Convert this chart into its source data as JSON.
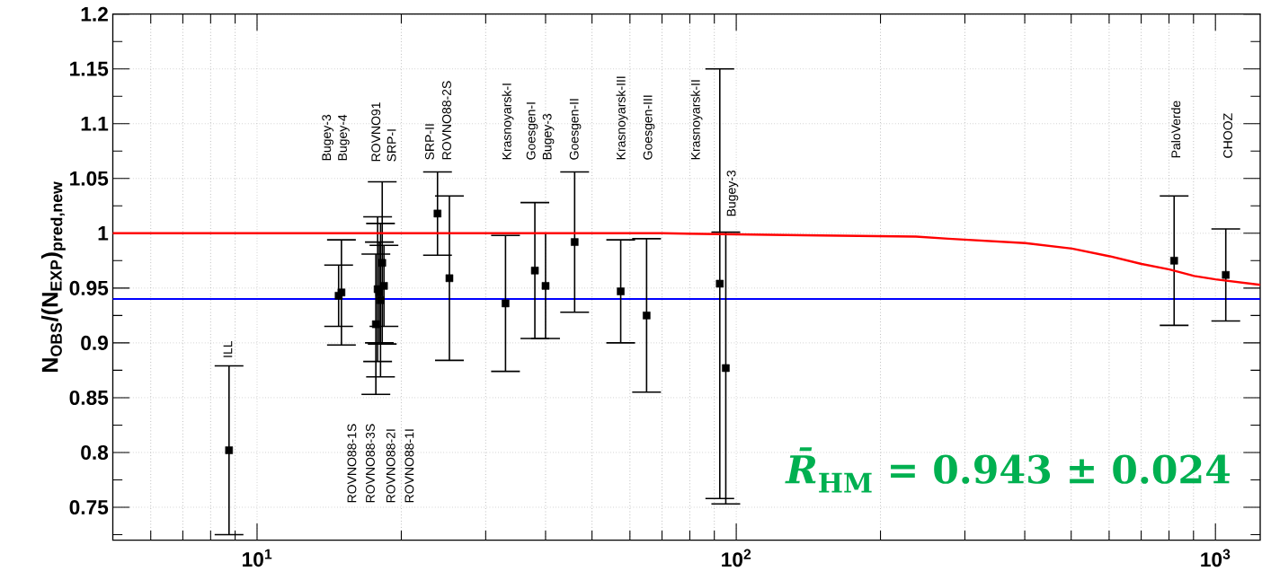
{
  "chart_data": {
    "type": "scatter",
    "ylabel": "N$_{OBS}$/(N$_{EXP}$)$_{pred,new}$",
    "log": "x",
    "grid": true,
    "xlim": [
      5,
      1240
    ],
    "ylim": [
      0.72,
      1.2
    ],
    "xticks": [
      {
        "value": 10,
        "label": "10$^{1}$"
      },
      {
        "value": 100,
        "label": "10$^{2}$"
      },
      {
        "value": 1000,
        "label": "10$^{3}$"
      }
    ],
    "yticks": [
      0.75,
      0.8,
      0.85,
      0.9,
      0.95,
      1,
      1.05,
      1.1,
      1.15,
      1.2
    ],
    "series": [
      {
        "color": "#000000",
        "marker": "square",
        "x": [
          8.74,
          14.8,
          15.0,
          17.7,
          17.85,
          18.0,
          18.1,
          18.25,
          18.4,
          23.8,
          25.2,
          33.0,
          38.0,
          40.0,
          46.0,
          57.4,
          65.0,
          92.4,
          95.1,
          820,
          1051
        ],
        "values": [
          0.802,
          0.943,
          0.946,
          0.917,
          0.949,
          0.946,
          0.939,
          0.973,
          0.952,
          1.018,
          0.959,
          0.936,
          0.966,
          0.952,
          0.992,
          0.947,
          0.925,
          0.954,
          0.877,
          0.975,
          0.962
        ],
        "errors": [
          0.077,
          0.028,
          0.048,
          0.064,
          0.066,
          0.046,
          0.07,
          0.074,
          0.037,
          0.038,
          0.075,
          0.062,
          0.062,
          0.048,
          0.064,
          0.047,
          0.07,
          0.196,
          0.124,
          0.059,
          0.042
        ]
      },
      {
        "type": "line",
        "color": "#ff0000",
        "marker": "none",
        "x": [
          5,
          30,
          70,
          100,
          150,
          237,
          277,
          401,
          502,
          602,
          701,
          802,
          903,
          1000,
          1240
        ],
        "values": [
          1.0,
          1.0,
          1.0,
          0.999,
          0.998,
          0.997,
          0.995,
          0.991,
          0.986,
          0.979,
          0.972,
          0.967,
          0.961,
          0.958,
          0.953
        ]
      }
    ],
    "ref_lines": [
      {
        "axis": "y",
        "value": 0.94,
        "color": "#0000ff"
      }
    ],
    "annotations": [
      "ILL",
      "Bugey-3",
      "Bugey-4",
      "ROVNO91",
      "SRP-I",
      "ROVNO88-1S",
      "ROVNO88-3S",
      "ROVNO88-2I",
      "ROVNO88-1I",
      "SRP-II",
      "ROVNO88-2S",
      "Krasnoyarsk-I",
      "Goesgen-I",
      "Bugey-3",
      "Goesgen-II",
      "Krasnoyarsk-III",
      "Goesgen-III",
      "Krasnoyarsk-II",
      "Bugey-3",
      "PaloVerde",
      "CHOOZ",
      "*R̄*$_{HM}$ = 0.943 ± 0.024"
    ]
  }
}
